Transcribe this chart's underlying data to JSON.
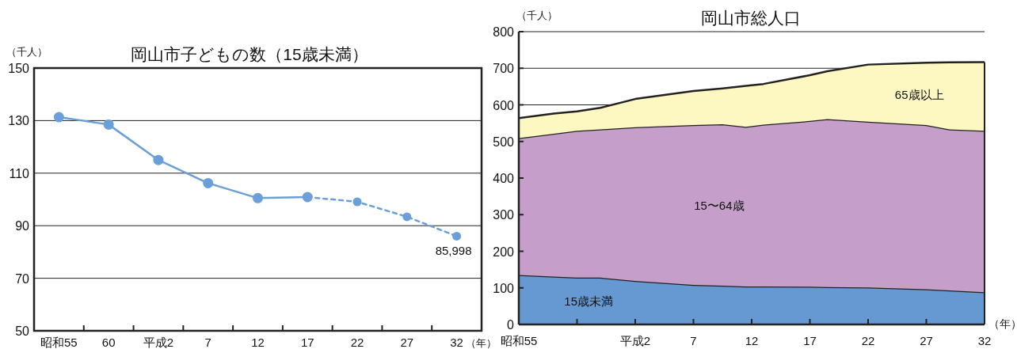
{
  "chart_data": [
    {
      "type": "line",
      "title": "岡山市子どもの数（15歳未満）",
      "ylabel": "（千人）",
      "xlabel": "（年）",
      "annotations": [
        {
          "text": "85,998",
          "x": "32",
          "y": 86.0
        }
      ],
      "categories": [
        "昭和55",
        "60",
        "平成2",
        "7",
        "12",
        "17",
        "22",
        "27",
        "32"
      ],
      "ylim": [
        50,
        150
      ],
      "yticks": [
        50,
        70,
        90,
        110,
        130,
        150
      ],
      "grid": "y",
      "marker": "circle",
      "series": [
        {
          "color": "#6a9fd8",
          "line_style": "solid",
          "values": [
            131.3,
            128.5,
            115.0,
            106.2,
            100.5,
            100.9,
            null,
            null,
            null
          ]
        },
        {
          "color": "#6a9fd8",
          "line_style": "dashed",
          "values": [
            null,
            null,
            null,
            null,
            null,
            100.9,
            99.1,
            93.4,
            86.0
          ]
        }
      ]
    },
    {
      "type": "area",
      "stacked": true,
      "title": "岡山市総人口",
      "ylabel": "（千人）",
      "xlabel": "（年）",
      "x": [
        -8,
        -5,
        -3,
        -1,
        2,
        7,
        9.5,
        11.5,
        13,
        17,
        18.5,
        22,
        27,
        29,
        32
      ],
      "xlim": [
        -8,
        32
      ],
      "xticks": [
        {
          "value": -8,
          "label": "昭和55"
        },
        {
          "value": -3,
          "label": null
        },
        {
          "value": 2,
          "label": "平成2"
        },
        7,
        12,
        17,
        22,
        27,
        32
      ],
      "ylim": [
        0,
        800
      ],
      "yticks": [
        0,
        100,
        200,
        300,
        400,
        500,
        600,
        700,
        800
      ],
      "grid": "y",
      "series": [
        {
          "name": "15歳未満",
          "color": "#6699d2",
          "values": [
            135,
            131,
            128,
            128,
            119,
            108,
            106,
            104,
            104,
            103,
            102,
            101,
            96,
            93,
            88
          ]
        },
        {
          "name": "15〜64歳",
          "color": "#c59fca",
          "values": [
            374,
            390,
            401,
            405,
            420,
            437,
            441,
            436,
            442,
            453,
            459,
            453,
            449,
            440,
            441
          ]
        },
        {
          "name": "65歳以上",
          "color": "#fdf8c2",
          "values": [
            55,
            55,
            53,
            59,
            77,
            93,
            98,
            112,
            111,
            125,
            131,
            156,
            170,
            183,
            188
          ]
        }
      ]
    }
  ]
}
